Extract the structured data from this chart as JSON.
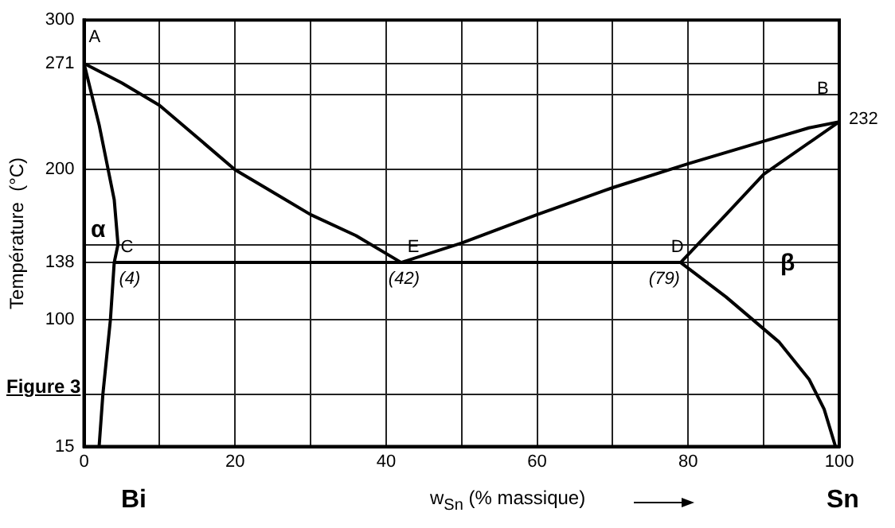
{
  "chart_data": {
    "type": "line",
    "xlabel": "w$_{Sn}$ (% massique)",
    "ylabel": "Température  (°C)",
    "xlim": [
      0,
      100
    ],
    "xticks": [
      0,
      {
        "value": 10,
        "label": null
      },
      20,
      {
        "value": 30,
        "label": null
      },
      40,
      {
        "value": 50,
        "label": null
      },
      60,
      {
        "value": 70,
        "label": null
      },
      80,
      {
        "value": 90,
        "label": null
      },
      100
    ],
    "ylim": [
      15,
      300
    ],
    "yticks": [
      15,
      {
        "value": 50,
        "label": null
      },
      100,
      138,
      {
        "value": 150,
        "label": null
      },
      200,
      {
        "value": 250,
        "label": null
      },
      271,
      300
    ],
    "grid": true,
    "marker": "none",
    "series": [
      {
        "color": "#000000",
        "x": [
          0,
          5,
          10,
          20,
          24,
          30,
          36,
          42
        ],
        "values": [
          271,
          258,
          243,
          200,
          188,
          170,
          156,
          138
        ]
      },
      {
        "color": "#000000",
        "x": [
          42,
          50,
          60,
          70,
          80,
          90,
          96,
          100
        ],
        "values": [
          138,
          151,
          170,
          188,
          204,
          219,
          228,
          232
        ]
      },
      {
        "color": "#000000",
        "x": [
          0,
          2,
          4,
          4.5,
          4,
          3.5,
          2.5,
          2
        ],
        "values": [
          271,
          230,
          180,
          150,
          138,
          100,
          50,
          15
        ]
      },
      {
        "color": "#000000",
        "x": [
          4,
          79
        ],
        "values": [
          138,
          138
        ]
      },
      {
        "color": "#000000",
        "x": [
          79,
          85,
          90,
          100
        ],
        "values": [
          138,
          170,
          197,
          232
        ]
      },
      {
        "color": "#000000",
        "x": [
          79,
          85,
          92,
          96,
          98,
          99.5
        ],
        "values": [
          138,
          115,
          85,
          60,
          40,
          15
        ]
      }
    ],
    "annotations": [
      {
        "text": "A",
        "x": 0,
        "y": 271
      },
      {
        "text": "B",
        "x": 100,
        "y": 232
      },
      {
        "text": "232",
        "x": 100,
        "y": 232
      },
      {
        "text": "C",
        "x": 4,
        "y": 138
      },
      {
        "text": "E",
        "x": 42,
        "y": 138
      },
      {
        "text": "D",
        "x": 79,
        "y": 138
      },
      {
        "text": "(4)",
        "x": 4,
        "y": 138
      },
      {
        "text": "(42)",
        "x": 42,
        "y": 138
      },
      {
        "text": "(79)",
        "x": 79,
        "y": 138
      },
      "α",
      "β",
      "Figure 3",
      "Bi",
      "Sn"
    ]
  }
}
